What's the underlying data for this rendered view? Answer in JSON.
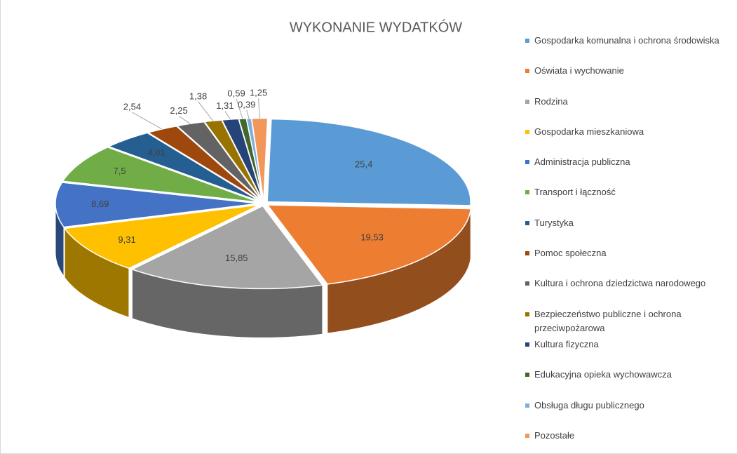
{
  "chart_data": {
    "type": "pie",
    "title": "WYKONANIE WYDATKÓW",
    "categories": [
      "Gospodarka komunalna i ochrona środowiska",
      "Oświata i wychowanie",
      "Rodzina",
      "Gospodarka mieszkaniowa",
      "Administracja publiczna",
      "Transport i łączność",
      "Turystyka",
      "Pomoc społeczna",
      "Kultura i ochrona dziedzictwa narodowego",
      "Bezpieczeństwo publiczne i ochrona przeciwpożarowa",
      "Kultura fizyczna",
      "Edukacyjna opieka wychowawcza",
      "Obsługa długu publicznego",
      "Pozostałe"
    ],
    "values": [
      25.4,
      19.53,
      15.85,
      9.31,
      8.69,
      7.5,
      4.01,
      2.54,
      2.25,
      1.38,
      1.31,
      0.59,
      0.39,
      1.25
    ],
    "value_labels": [
      "25,4",
      "19,53",
      "15,85",
      "9,31",
      "8,69",
      "7,5",
      "4,01",
      "2,54",
      "2,25",
      "1,38",
      "1,31",
      "0,59",
      "0,39",
      "1,25"
    ],
    "colors": [
      "#5b9bd5",
      "#ed7d31",
      "#a5a5a5",
      "#ffc000",
      "#4472c4",
      "#70ad47",
      "#255e91",
      "#9e480e",
      "#636363",
      "#997300",
      "#264478",
      "#43682b",
      "#7cafdd",
      "#f1975a"
    ],
    "legend": "right"
  }
}
